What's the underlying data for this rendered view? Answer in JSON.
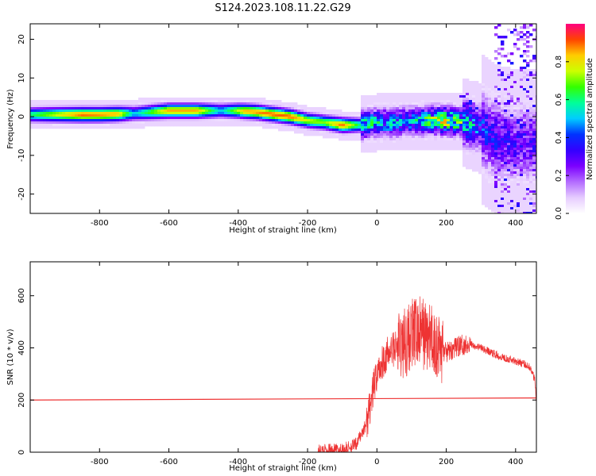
{
  "title": "S124.2023.108.11.22.G29",
  "chart_data": [
    {
      "type": "heatmap",
      "xlabel": "Height of straight line (km)",
      "ylabel": "Frequency (Hz)",
      "xlim": [
        -1000,
        460
      ],
      "ylim": [
        -25,
        24
      ],
      "x_ticks": [
        -800,
        -600,
        -400,
        -200,
        0,
        200,
        400
      ],
      "y_ticks": [
        -20,
        -10,
        0,
        10,
        20
      ],
      "colorbar": {
        "label": "Normalized spectral amplitude",
        "range": [
          0,
          1
        ],
        "ticks": [
          0.0,
          0.2,
          0.4,
          0.6,
          0.8
        ],
        "colormap": [
          "#ffffff",
          "#e6ccff",
          "#b36bff",
          "#7b00ff",
          "#3300ff",
          "#0033ff",
          "#00ccff",
          "#00ff99",
          "#33ff00",
          "#ccff00",
          "#ffcc00",
          "#ff4400",
          "#ff0080"
        ]
      },
      "ridge_center": [
        {
          "x": -1000,
          "y": 0.5
        },
        {
          "x": -900,
          "y": 0.5
        },
        {
          "x": -800,
          "y": 0.5
        },
        {
          "x": -700,
          "y": 0.8
        },
        {
          "x": -600,
          "y": 1.5
        },
        {
          "x": -500,
          "y": 1.5
        },
        {
          "x": -400,
          "y": 1.5
        },
        {
          "x": -350,
          "y": 1.2
        },
        {
          "x": -300,
          "y": 0.6
        },
        {
          "x": -250,
          "y": 0
        },
        {
          "x": -200,
          "y": -1.0
        },
        {
          "x": -150,
          "y": -1.5
        },
        {
          "x": -100,
          "y": -2.2
        },
        {
          "x": -50,
          "y": -2.2
        },
        {
          "x": 0,
          "y": -1.5
        },
        {
          "x": 50,
          "y": -1.5
        },
        {
          "x": 100,
          "y": -1.2
        },
        {
          "x": 150,
          "y": -1.0
        },
        {
          "x": 200,
          "y": -1.0
        },
        {
          "x": 250,
          "y": -1.5
        },
        {
          "x": 300,
          "y": -3
        },
        {
          "x": 350,
          "y": -6
        },
        {
          "x": 400,
          "y": -7
        }
      ],
      "ridge_intensity": [
        {
          "x": -1000,
          "v": 0.6
        },
        {
          "x": -850,
          "v": 0.9
        },
        {
          "x": -750,
          "v": 0.85
        },
        {
          "x": -700,
          "v": 0.5
        },
        {
          "x": -600,
          "v": 0.85
        },
        {
          "x": -520,
          "v": 0.85
        },
        {
          "x": -450,
          "v": 0.5
        },
        {
          "x": -380,
          "v": 0.85
        },
        {
          "x": -300,
          "v": 0.9
        },
        {
          "x": -250,
          "v": 0.9
        },
        {
          "x": -200,
          "v": 0.75
        },
        {
          "x": -150,
          "v": 0.7
        },
        {
          "x": -100,
          "v": 0.9
        },
        {
          "x": -50,
          "v": 0.6
        },
        {
          "x": 0,
          "v": 0.55
        },
        {
          "x": 100,
          "v": 0.5
        },
        {
          "x": 200,
          "v": 0.75
        },
        {
          "x": 250,
          "v": 0.6
        },
        {
          "x": 300,
          "v": 0.4
        },
        {
          "x": 400,
          "v": 0.3
        }
      ]
    },
    {
      "type": "line",
      "xlabel": "Height of straight line (km)",
      "ylabel": "SNR (10 * v/v)",
      "xlim": [
        -1000,
        460
      ],
      "ylim": [
        0,
        730
      ],
      "x_ticks": [
        -800,
        -600,
        -400,
        -200,
        0,
        200,
        400
      ],
      "y_ticks": [
        0,
        200,
        400,
        600
      ],
      "series": [
        {
          "color": "#ee3333",
          "x": [
            -1000,
            460
          ],
          "y": [
            200,
            208
          ]
        },
        {
          "color": "#ee3333",
          "x": [
            -170,
            -100,
            -60,
            -30,
            -10,
            0,
            20,
            50,
            80,
            100,
            130,
            150,
            180,
            200,
            240,
            270,
            300,
            350,
            400,
            440,
            455,
            460
          ],
          "y": [
            5,
            10,
            30,
            110,
            240,
            300,
            360,
            400,
            420,
            450,
            460,
            440,
            400,
            380,
            410,
            415,
            400,
            370,
            350,
            330,
            280,
            200
          ]
        }
      ]
    }
  ]
}
